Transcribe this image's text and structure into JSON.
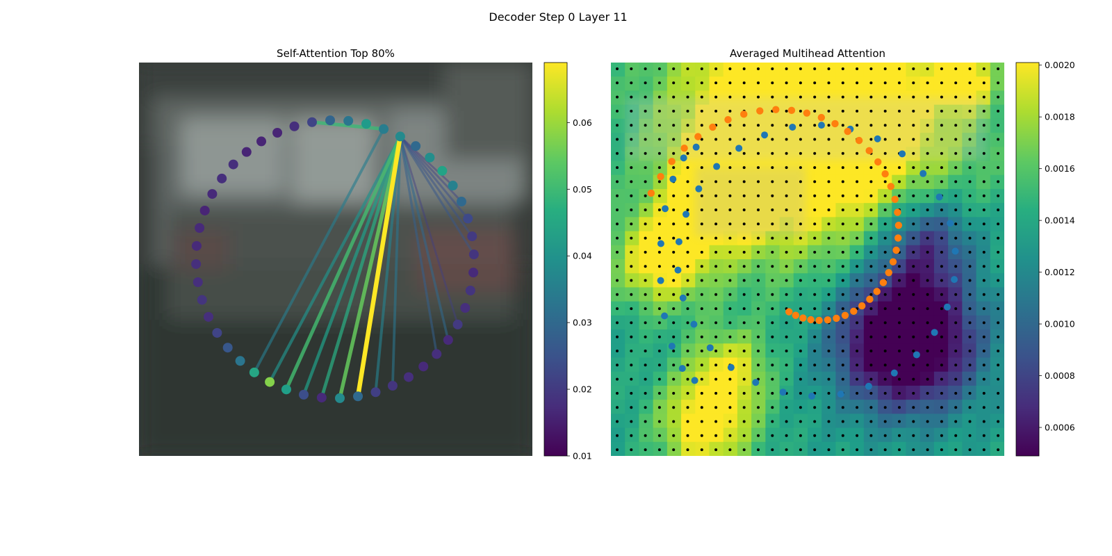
{
  "figure": {
    "suptitle": "Decoder Step 0 Layer 11"
  },
  "chart_data": [
    {
      "type": "scatter",
      "title": "Self-Attention Top 80%",
      "xlabel": "",
      "ylabel": "",
      "description_note": "",
      "colormap": "viridis",
      "background_image": "blurred photograph of a van",
      "colorbar": {
        "min": 0.01,
        "max": 0.069,
        "ticks": [
          0.01,
          0.02,
          0.03,
          0.04,
          0.05,
          0.06
        ]
      },
      "nodes": {
        "count": 48,
        "layout": "circle"
      },
      "source_node": 0,
      "edges": [
        {
          "to": 29,
          "weight": 0.069
        },
        {
          "to": 28,
          "weight": 0.055
        },
        {
          "to": 25,
          "weight": 0.051
        },
        {
          "to": 27,
          "weight": 0.046
        },
        {
          "to": 26,
          "weight": 0.043
        },
        {
          "to": 24,
          "weight": 0.04
        },
        {
          "to": 30,
          "weight": 0.036
        },
        {
          "to": 31,
          "weight": 0.033
        },
        {
          "to": 35,
          "weight": 0.03
        },
        {
          "to": 34,
          "weight": 0.028
        },
        {
          "to": 40,
          "weight": 0.026
        },
        {
          "to": 41,
          "weight": 0.025
        },
        {
          "to": 42,
          "weight": 0.024
        },
        {
          "to": 43,
          "weight": 0.022
        },
        {
          "to": 36,
          "weight": 0.021
        },
        {
          "to": 44,
          "weight": 0.02
        },
        {
          "from": 1,
          "to": 5,
          "weight": 0.05
        },
        {
          "from": 1,
          "to": 23,
          "weight": 0.035
        }
      ],
      "node_values": [
        0.038,
        0.035,
        0.042,
        0.033,
        0.029,
        0.022,
        0.018,
        0.016,
        0.016,
        0.016,
        0.018,
        0.018,
        0.017,
        0.016,
        0.017,
        0.017,
        0.018,
        0.018,
        0.019,
        0.018,
        0.022,
        0.026,
        0.033,
        0.045,
        0.058,
        0.043,
        0.024,
        0.017,
        0.038,
        0.03,
        0.021,
        0.019,
        0.018,
        0.017,
        0.018,
        0.017,
        0.02,
        0.018,
        0.019,
        0.017,
        0.019,
        0.02,
        0.023,
        0.03,
        0.036,
        0.044,
        0.039,
        0.03
      ]
    },
    {
      "type": "heatmap",
      "title": "Averaged Multihead Attention",
      "xlabel": "",
      "ylabel": "",
      "colormap": "viridis",
      "grid": {
        "rows": 28,
        "cols": 28
      },
      "colorbar": {
        "min": 0.00049,
        "max": 0.00201,
        "ticks": [
          0.0006,
          0.0008,
          0.001,
          0.0012,
          0.0014,
          0.0016,
          0.0018,
          0.002
        ]
      },
      "overlay_points": [
        {
          "series": "blue",
          "color": "#1f77b4",
          "layout": "two circles of 30 points"
        },
        {
          "series": "orange",
          "color": "#ff7f0e",
          "layout": "spiral of 40 points"
        }
      ]
    }
  ]
}
